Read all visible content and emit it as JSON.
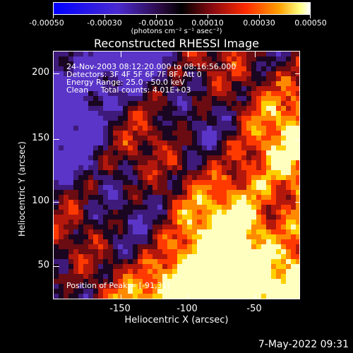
{
  "colorbar": {
    "ticks": [
      "-0.00050",
      "-0.00030",
      "-0.00010",
      "0.00010",
      "0.00030",
      "0.00050"
    ],
    "units": "(photons cm⁻² s⁻¹ asec⁻²)"
  },
  "title": "Reconstructed RHESSI Image",
  "annotations": {
    "time": "24-Nov-2003 08:12:20.000 to 08:16:56.000",
    "detectors": "Detectors: 3F 4F 5F 6F 7F 8F, Att 0",
    "energy": "Energy Range: 25.0 - 50.0 keV",
    "clean": "Clean     Total counts: 4.01E+03",
    "peak": "Position of Peak = [-91,31]"
  },
  "axes": {
    "xlabel": "Heliocentric X (arcsec)",
    "ylabel": "Heliocentric Y (arcsec)",
    "xticks": [
      "-150",
      "-100",
      "-50"
    ],
    "yticks": [
      "200",
      "150",
      "100",
      "50"
    ]
  },
  "footer": "7-May-2022 09:31",
  "colors": {
    "neg_max": "#0000ff",
    "neg_mid": "#6a3fc0",
    "zero": "#000000",
    "pos_low": "#8a1010",
    "pos_mid": "#ff3a00",
    "pos_high": "#ffd000",
    "pos_max": "#ffffff"
  }
}
